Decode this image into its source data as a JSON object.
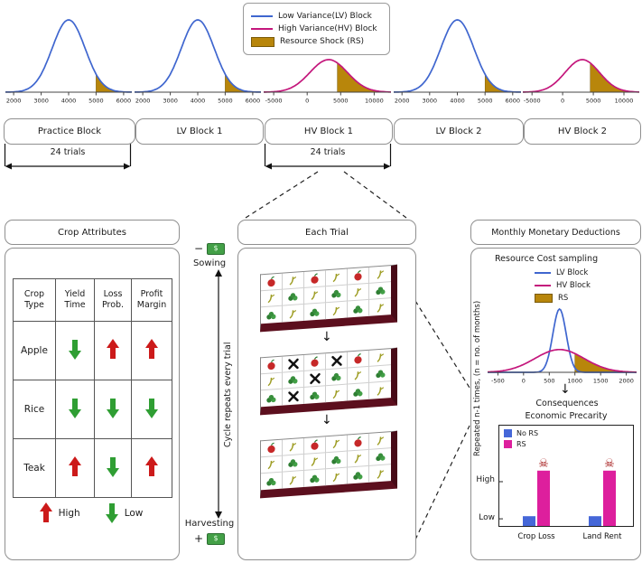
{
  "colors": {
    "lv_blue": "#3f66cf",
    "hv_magenta": "#c4177c",
    "rs_gold": "#b8860b",
    "soil": "#5c0f1e",
    "soil_dark": "#470a17",
    "arrow_red": "#cc1a1a",
    "arrow_green": "#2f9e33",
    "bar_blue": "#4567d8",
    "bar_magenta": "#dd1f9d",
    "skull_red": "#a31515",
    "money_green": "#43a047",
    "panel_border": "#8f8f8f"
  },
  "icons": {
    "money": "$",
    "skull": "☠",
    "down_arrow": "↓"
  },
  "legend": {
    "items": [
      {
        "swatch": "line-blue",
        "label": "Low Variance(LV) Block"
      },
      {
        "swatch": "line-magenta",
        "label": "High Variance(HV) Block"
      },
      {
        "swatch": "rect-gold",
        "label": "Resource Shock (RS)"
      }
    ]
  },
  "blocks": [
    {
      "label": "Practice Block"
    },
    {
      "label": "LV Block 1"
    },
    {
      "label": "HV Block 1"
    },
    {
      "label": "LV Block 2"
    },
    {
      "label": "HV Block 2"
    }
  ],
  "trial_spans": [
    {
      "label": "24 trials"
    },
    {
      "label": "24 trials"
    }
  ],
  "crop_panel": {
    "title": "Crop Attributes",
    "headers": [
      "Crop Type",
      "Yield Time",
      "Loss Prob.",
      "Profit Margin"
    ],
    "rows": [
      {
        "name": "Apple",
        "yield_time": "down green",
        "loss_prob": "up red",
        "profit_margin": "up red"
      },
      {
        "name": "Rice",
        "yield_time": "down green",
        "loss_prob": "down green",
        "profit_margin": "down green"
      },
      {
        "name": "Teak",
        "yield_time": "up red",
        "loss_prob": "down green",
        "profit_margin": "up red"
      }
    ],
    "legend": [
      {
        "arrow": "up red",
        "label": "High"
      },
      {
        "arrow": "down green",
        "label": "Low"
      }
    ]
  },
  "trial_panel": {
    "title": "Each Trial",
    "sowing_sign": "−",
    "sowing_label": "Sowing",
    "harvesting_sign": "+",
    "harvesting_label": "Harvesting",
    "cycle_label": "Cycle repeats every trial",
    "grids": [
      {
        "name": "sown",
        "rows": [
          [
            "apple",
            "rice",
            "apple",
            "rice",
            "apple",
            "rice"
          ],
          [
            "rice",
            "green",
            "rice",
            "green",
            "rice",
            "green"
          ],
          [
            "green",
            "rice",
            "green",
            "rice",
            "green",
            "rice"
          ]
        ]
      },
      {
        "name": "crop-loss",
        "rows": [
          [
            "apple",
            "lost",
            "apple",
            "lost",
            "apple",
            "rice"
          ],
          [
            "rice",
            "green",
            "lost",
            "green",
            "rice",
            "green"
          ],
          [
            "green",
            "lost",
            "green",
            "rice",
            "green",
            "rice"
          ]
        ]
      },
      {
        "name": "harvest",
        "rows": [
          [
            "apple",
            "rice",
            "apple",
            "rice",
            "apple",
            "rice"
          ],
          [
            "rice",
            "green",
            "rice",
            "green",
            "rice",
            "green"
          ],
          [
            "green",
            "rice",
            "green",
            "rice",
            "green",
            "rice"
          ]
        ]
      }
    ]
  },
  "monthly_panel": {
    "title": "Monthly Monetary Deductions",
    "repeat_label": "Repeated n-1 times, (n = no. of months)",
    "sampling_title": "Resource Cost sampling",
    "sampling_legend": [
      {
        "swatch": "line-blue",
        "label": "LV Block"
      },
      {
        "swatch": "line-magenta",
        "label": "HV Block"
      },
      {
        "swatch": "rect-gold",
        "label": "RS"
      }
    ],
    "consequences_label": "Consequences",
    "precarity_title": "Economic Precarity",
    "bar_legend": [
      {
        "swatch": "sq-blue",
        "label": "No RS"
      },
      {
        "swatch": "sq-magenta",
        "label": "RS"
      }
    ]
  },
  "chart_data": [
    {
      "id": "practice-distribution",
      "type": "area",
      "block": "Practice Block",
      "curves": [
        {
          "name": "LV",
          "color_key": "lv_blue",
          "mean": 4000,
          "sd": 600,
          "amp": 1.0
        }
      ],
      "shade": {
        "under": "LV",
        "from": 5000,
        "to": 6300,
        "color_key": "rs_gold"
      },
      "xlim": [
        1700,
        6300
      ],
      "xticks": [
        2000,
        3000,
        4000,
        5000,
        6000
      ]
    },
    {
      "id": "lv1-distribution",
      "type": "area",
      "block": "LV Block 1",
      "curves": [
        {
          "name": "LV",
          "color_key": "lv_blue",
          "mean": 4000,
          "sd": 600,
          "amp": 1.0
        }
      ],
      "shade": {
        "under": "LV",
        "from": 5000,
        "to": 6300,
        "color_key": "rs_gold"
      },
      "xlim": [
        1700,
        6300
      ],
      "xticks": [
        2000,
        3000,
        4000,
        5000,
        6000
      ]
    },
    {
      "id": "hv1-distribution",
      "type": "area",
      "block": "HV Block 1",
      "curves": [
        {
          "name": "HV",
          "color_key": "hv_magenta",
          "mean": 3200,
          "sd": 2800,
          "amp": 0.45
        }
      ],
      "shade": {
        "under": "HV",
        "from": 4500,
        "to": 12500,
        "color_key": "rs_gold"
      },
      "xlim": [
        -6500,
        12500
      ],
      "xticks": [
        -5000,
        0,
        5000,
        10000
      ]
    },
    {
      "id": "lv2-distribution",
      "type": "area",
      "block": "LV Block 2",
      "curves": [
        {
          "name": "LV",
          "color_key": "lv_blue",
          "mean": 4000,
          "sd": 600,
          "amp": 1.0
        }
      ],
      "shade": {
        "under": "LV",
        "from": 5000,
        "to": 6300,
        "color_key": "rs_gold"
      },
      "xlim": [
        1700,
        6300
      ],
      "xticks": [
        2000,
        3000,
        4000,
        5000,
        6000
      ]
    },
    {
      "id": "hv2-distribution",
      "type": "area",
      "block": "HV Block 2",
      "curves": [
        {
          "name": "HV",
          "color_key": "hv_magenta",
          "mean": 3200,
          "sd": 2800,
          "amp": 0.45
        }
      ],
      "shade": {
        "under": "HV",
        "from": 4500,
        "to": 12500,
        "color_key": "rs_gold"
      },
      "xlim": [
        -6500,
        12500
      ],
      "xticks": [
        -5000,
        0,
        5000,
        10000
      ]
    },
    {
      "id": "resource-cost-sampling",
      "type": "area",
      "title": "Resource Cost sampling",
      "curves": [
        {
          "name": "LV Block",
          "color_key": "lv_blue",
          "mean": 700,
          "sd": 130,
          "amp": 1.0
        },
        {
          "name": "HV Block",
          "color_key": "hv_magenta",
          "mean": 700,
          "sd": 480,
          "amp": 0.36
        }
      ],
      "shade": {
        "under": "HV Block",
        "from": 1000,
        "to": 2200,
        "color_key": "rs_gold"
      },
      "xlim": [
        -700,
        2200
      ],
      "xticks": [
        -500,
        0,
        500,
        1000,
        1500,
        2000
      ]
    },
    {
      "id": "economic-precarity",
      "type": "bar",
      "title": "Economic Precarity",
      "categories": [
        "Crop Loss",
        "Land Rent"
      ],
      "series": [
        {
          "name": "No RS",
          "color_key": "bar_blue",
          "values": [
            0.15,
            0.15
          ]
        },
        {
          "name": "RS",
          "color_key": "bar_magenta",
          "values": [
            0.85,
            0.85
          ],
          "skull": true
        }
      ],
      "yticks": [
        {
          "label": "High",
          "value": 0.68
        },
        {
          "label": "Low",
          "value": 0.11
        }
      ]
    }
  ]
}
